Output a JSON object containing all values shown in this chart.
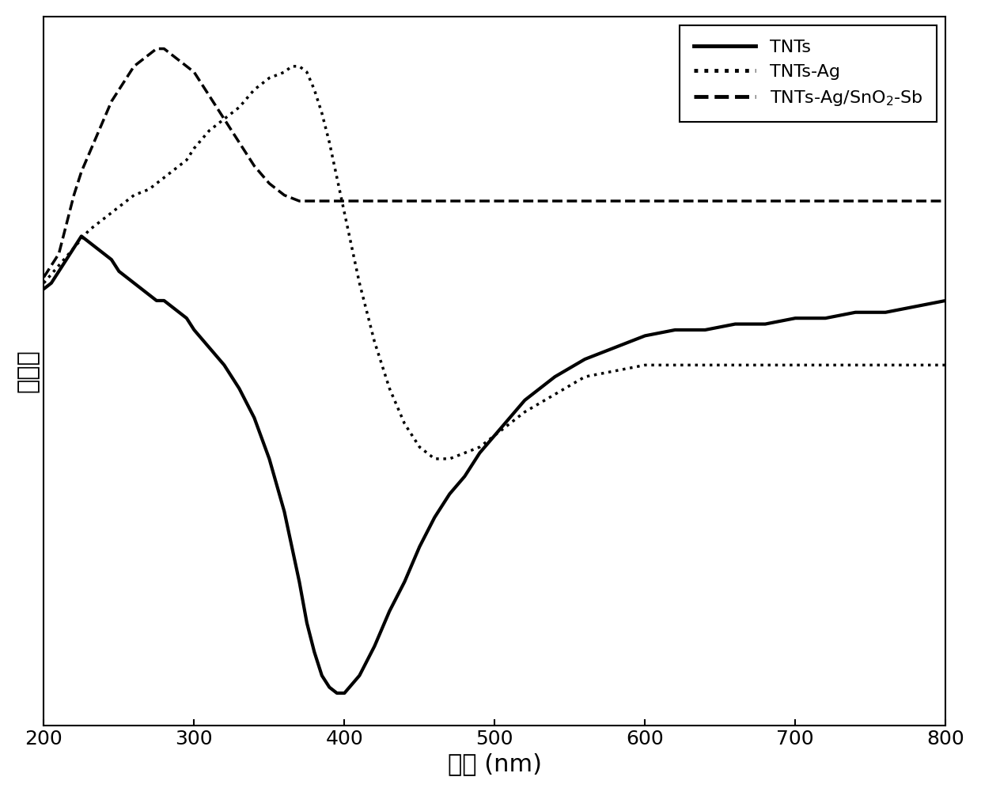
{
  "xlabel": "波长 (nm)",
  "ylabel": "吸光度",
  "xlim": [
    200,
    800
  ],
  "xticks": [
    200,
    300,
    400,
    500,
    600,
    700,
    800
  ],
  "background_color": "#ffffff",
  "line_color": "#000000",
  "legend_labels": [
    "TNTs",
    "TNTs-Ag",
    "TNTs-Ag/SnO$_2$-Sb"
  ],
  "legend_linestyles": [
    "solid",
    "dotted",
    "dashed"
  ],
  "TNTs_x": [
    200,
    205,
    210,
    215,
    220,
    225,
    230,
    235,
    240,
    245,
    250,
    255,
    260,
    265,
    270,
    275,
    280,
    285,
    290,
    295,
    300,
    310,
    320,
    330,
    340,
    350,
    360,
    370,
    375,
    380,
    385,
    390,
    395,
    400,
    410,
    420,
    430,
    440,
    450,
    460,
    470,
    480,
    490,
    500,
    520,
    540,
    560,
    580,
    600,
    620,
    640,
    660,
    680,
    700,
    720,
    740,
    760,
    780,
    800
  ],
  "TNTs_y": [
    0.72,
    0.73,
    0.75,
    0.77,
    0.79,
    0.81,
    0.8,
    0.79,
    0.78,
    0.77,
    0.75,
    0.74,
    0.73,
    0.72,
    0.71,
    0.7,
    0.7,
    0.69,
    0.68,
    0.67,
    0.65,
    0.62,
    0.59,
    0.55,
    0.5,
    0.43,
    0.34,
    0.22,
    0.15,
    0.1,
    0.06,
    0.04,
    0.03,
    0.03,
    0.06,
    0.11,
    0.17,
    0.22,
    0.28,
    0.33,
    0.37,
    0.4,
    0.44,
    0.47,
    0.53,
    0.57,
    0.6,
    0.62,
    0.64,
    0.65,
    0.65,
    0.66,
    0.66,
    0.67,
    0.67,
    0.68,
    0.68,
    0.69,
    0.7
  ],
  "TNTs_Ag_x": [
    200,
    210,
    220,
    230,
    240,
    250,
    260,
    270,
    275,
    280,
    285,
    290,
    295,
    300,
    310,
    320,
    330,
    340,
    350,
    360,
    365,
    370,
    375,
    380,
    385,
    390,
    400,
    410,
    420,
    430,
    440,
    450,
    460,
    470,
    480,
    490,
    500,
    520,
    540,
    560,
    580,
    600,
    620,
    640,
    660,
    680,
    700,
    720,
    740,
    760,
    780,
    800
  ],
  "TNTs_Ag_y": [
    0.73,
    0.76,
    0.79,
    0.82,
    0.84,
    0.86,
    0.88,
    0.89,
    0.9,
    0.91,
    0.92,
    0.93,
    0.94,
    0.96,
    0.99,
    1.01,
    1.03,
    1.06,
    1.08,
    1.09,
    1.1,
    1.1,
    1.09,
    1.06,
    1.02,
    0.97,
    0.85,
    0.73,
    0.63,
    0.55,
    0.49,
    0.45,
    0.43,
    0.43,
    0.44,
    0.45,
    0.47,
    0.51,
    0.54,
    0.57,
    0.58,
    0.59,
    0.59,
    0.59,
    0.59,
    0.59,
    0.59,
    0.59,
    0.59,
    0.59,
    0.59,
    0.59
  ],
  "TNTs_Ag_SnO2_Sb_x": [
    200,
    210,
    215,
    220,
    225,
    230,
    235,
    240,
    245,
    250,
    255,
    260,
    265,
    270,
    275,
    280,
    285,
    290,
    295,
    300,
    310,
    320,
    330,
    340,
    350,
    360,
    370,
    380,
    390,
    400,
    410,
    420,
    430,
    440,
    450,
    460,
    470,
    480,
    490,
    500,
    520,
    540,
    560,
    580,
    600,
    620,
    640,
    660,
    680,
    700,
    720,
    740,
    760,
    780,
    800
  ],
  "TNTs_Ag_SnO2_Sb_y": [
    0.74,
    0.78,
    0.83,
    0.88,
    0.92,
    0.95,
    0.98,
    1.01,
    1.04,
    1.06,
    1.08,
    1.1,
    1.11,
    1.12,
    1.13,
    1.13,
    1.12,
    1.11,
    1.1,
    1.09,
    1.05,
    1.01,
    0.97,
    0.93,
    0.9,
    0.88,
    0.87,
    0.87,
    0.87,
    0.87,
    0.87,
    0.87,
    0.87,
    0.87,
    0.87,
    0.87,
    0.87,
    0.87,
    0.87,
    0.87,
    0.87,
    0.87,
    0.87,
    0.87,
    0.87,
    0.87,
    0.87,
    0.87,
    0.87,
    0.87,
    0.87,
    0.87,
    0.87,
    0.87,
    0.87
  ],
  "linewidth": 2.5,
  "xlabel_fontsize": 22,
  "ylabel_fontsize": 22,
  "tick_fontsize": 18,
  "legend_fontsize": 16
}
